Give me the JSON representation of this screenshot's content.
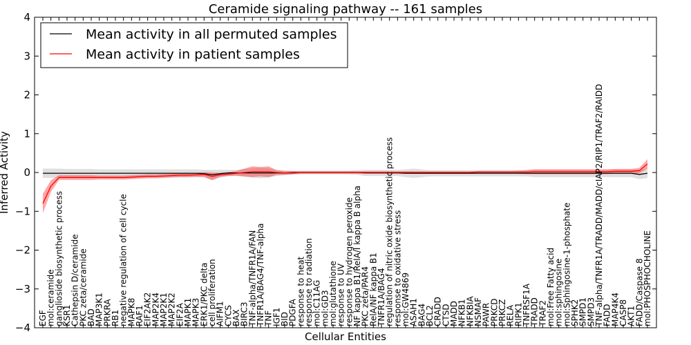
{
  "chart_data": {
    "type": "line",
    "title": "Ceramide signaling pathway -- 161 samples",
    "xlabel": "Cellular Entities",
    "ylabel": "Inferred Activity",
    "ylim": [
      -4,
      4
    ],
    "yticks": [
      -4,
      -3,
      -2,
      -1,
      0,
      1,
      2,
      3,
      4
    ],
    "legend": {
      "placement": "top-left",
      "entries": [
        {
          "label": "Mean activity in all permuted samples",
          "color": "#000000"
        },
        {
          "label": "Mean activity in patient samples",
          "color": "#ff0000"
        }
      ]
    },
    "categories": [
      "EGF",
      "mol:ceramide",
      "ganglioside biosynthetic process",
      "KSR1",
      "Cathepsin D/ceramide",
      "PKC zeta/ceramide",
      "BAD",
      "MAP3K1",
      "PRKRA",
      "RB1",
      "negative regulation of cell cycle",
      "MAPK8",
      "RAF1",
      "EIF2AK2",
      "MAP2K4",
      "MAP2K1",
      "MAP2K2",
      "EIF2A",
      "MAPK1",
      "MAPK3",
      "ERK1/PKC delta",
      "cell proliferation",
      "AIFM1",
      "CYCS",
      "BAX",
      "BIRC3",
      "TNF-alpha/TNFR1A/FAN",
      "TNFR1A/BAG4/TNF-alpha",
      "TNF",
      "IGF1",
      "BID",
      "PDGFA",
      "response to heat",
      "response to radiation",
      "mol:C11AG",
      "mol:GD3",
      "mol:glutathione",
      "response to UV",
      "response to hydrogen peroxide",
      "NF kappa B1/RelA/I kappa B alpha",
      "PKC zeta/PAR4",
      "RelA/NF kappa B1",
      "TNFR1A/BAG4",
      "regulation of nitric oxide biosynthetic process",
      "response to oxidative stress",
      "mol:GW4869",
      "ASAH1",
      "BAG4",
      "BCL2",
      "CRADD",
      "CTSD",
      "MADD",
      "NFKB1",
      "NFKBIA",
      "NSMAF",
      "PAWR",
      "PRKCD",
      "PRKCZ",
      "RELA",
      "RIPK1",
      "TNFRSF1A",
      "TRADD",
      "TRAF2",
      "mol:Free Fatty acid",
      "mol:sphingosine",
      "mol:Sphingosine-1-phosphate",
      "SPHK2",
      "SMPD1",
      "SMPD3",
      "TNF-alpha/TNFR1A/TRADD/MADD/cIAP2/RIP1/TRAF2/RAIDD",
      "FADD",
      "MAP4K4",
      "CASP8",
      "AKT1",
      "FADD/Caspase 8",
      "mol:PHOSPHOCHOLINE"
    ],
    "series": [
      {
        "name": "Mean activity in all permuted samples",
        "color": "#000000",
        "values": [
          -0.02,
          -0.02,
          -0.02,
          -0.02,
          -0.02,
          -0.02,
          -0.02,
          -0.02,
          -0.02,
          -0.02,
          -0.02,
          -0.02,
          -0.02,
          -0.02,
          -0.02,
          -0.02,
          -0.02,
          -0.02,
          -0.02,
          -0.02,
          -0.03,
          -0.06,
          -0.03,
          -0.01,
          -0.01,
          -0.01,
          -0.01,
          -0.01,
          -0.01,
          -0.01,
          -0.01,
          -0.01,
          0,
          0,
          0,
          0,
          0,
          0,
          0,
          0,
          -0.01,
          -0.01,
          -0.01,
          -0.01,
          -0.01,
          -0.02,
          -0.02,
          -0.02,
          -0.02,
          -0.02,
          -0.02,
          -0.02,
          -0.02,
          -0.02,
          -0.02,
          -0.02,
          -0.02,
          -0.02,
          -0.02,
          -0.02,
          -0.02,
          -0.02,
          -0.02,
          -0.02,
          -0.02,
          -0.02,
          -0.02,
          -0.02,
          -0.02,
          -0.02,
          -0.02,
          -0.02,
          -0.02,
          -0.02,
          -0.05,
          -0.02
        ],
        "band": [
          0.12,
          0.12,
          0.12,
          0.11,
          0.11,
          0.11,
          0.11,
          0.1,
          0.1,
          0.1,
          0.1,
          0.1,
          0.1,
          0.1,
          0.1,
          0.1,
          0.1,
          0.1,
          0.1,
          0.1,
          0.1,
          0.13,
          0.1,
          0.08,
          0.08,
          0.1,
          0.12,
          0.14,
          0.12,
          0.08,
          0.06,
          0.05,
          0.05,
          0.05,
          0.05,
          0.05,
          0.05,
          0.05,
          0.05,
          0.06,
          0.08,
          0.08,
          0.08,
          0.08,
          0.08,
          0.1,
          0.12,
          0.1,
          0.08,
          0.08,
          0.08,
          0.08,
          0.08,
          0.08,
          0.08,
          0.08,
          0.08,
          0.08,
          0.08,
          0.08,
          0.08,
          0.1,
          0.1,
          0.1,
          0.1,
          0.1,
          0.1,
          0.1,
          0.1,
          0.1,
          0.1,
          0.1,
          0.1,
          0.1,
          0.12,
          0.12
        ]
      },
      {
        "name": "Mean activity in patient samples",
        "color": "#ff0000",
        "values": [
          -0.8,
          -0.35,
          -0.13,
          -0.13,
          -0.13,
          -0.13,
          -0.13,
          -0.13,
          -0.13,
          -0.13,
          -0.13,
          -0.12,
          -0.11,
          -0.1,
          -0.1,
          -0.09,
          -0.08,
          -0.07,
          -0.07,
          -0.06,
          -0.05,
          -0.1,
          -0.06,
          -0.04,
          -0.02,
          0,
          0.02,
          0.02,
          0.02,
          0,
          -0.01,
          0,
          0,
          0,
          0,
          0,
          0,
          0,
          0,
          0,
          0,
          0,
          0,
          0,
          0,
          0,
          0,
          0,
          0,
          0,
          0,
          0,
          0,
          0,
          0.01,
          0.01,
          0.01,
          0.01,
          0.01,
          0.01,
          0.01,
          0.02,
          0.02,
          0.02,
          0.02,
          0.02,
          0.02,
          0.02,
          0.02,
          0.02,
          0.02,
          0.03,
          0.03,
          0.03,
          0.05,
          0.22
        ],
        "band": [
          0.25,
          0.15,
          0.06,
          0.06,
          0.06,
          0.06,
          0.06,
          0.05,
          0.05,
          0.05,
          0.05,
          0.05,
          0.05,
          0.05,
          0.05,
          0.05,
          0.05,
          0.05,
          0.05,
          0.05,
          0.06,
          0.1,
          0.05,
          0.05,
          0.06,
          0.1,
          0.14,
          0.12,
          0.14,
          0.06,
          0.05,
          0.04,
          0.03,
          0.03,
          0.03,
          0.03,
          0.03,
          0.03,
          0.03,
          0.03,
          0.03,
          0.03,
          0.03,
          0.03,
          0.03,
          0.03,
          0.03,
          0.03,
          0.03,
          0.03,
          0.03,
          0.03,
          0.03,
          0.03,
          0.03,
          0.03,
          0.03,
          0.03,
          0.03,
          0.04,
          0.05,
          0.06,
          0.06,
          0.06,
          0.06,
          0.06,
          0.06,
          0.06,
          0.06,
          0.06,
          0.06,
          0.06,
          0.06,
          0.06,
          0.07,
          0.12
        ]
      }
    ]
  }
}
